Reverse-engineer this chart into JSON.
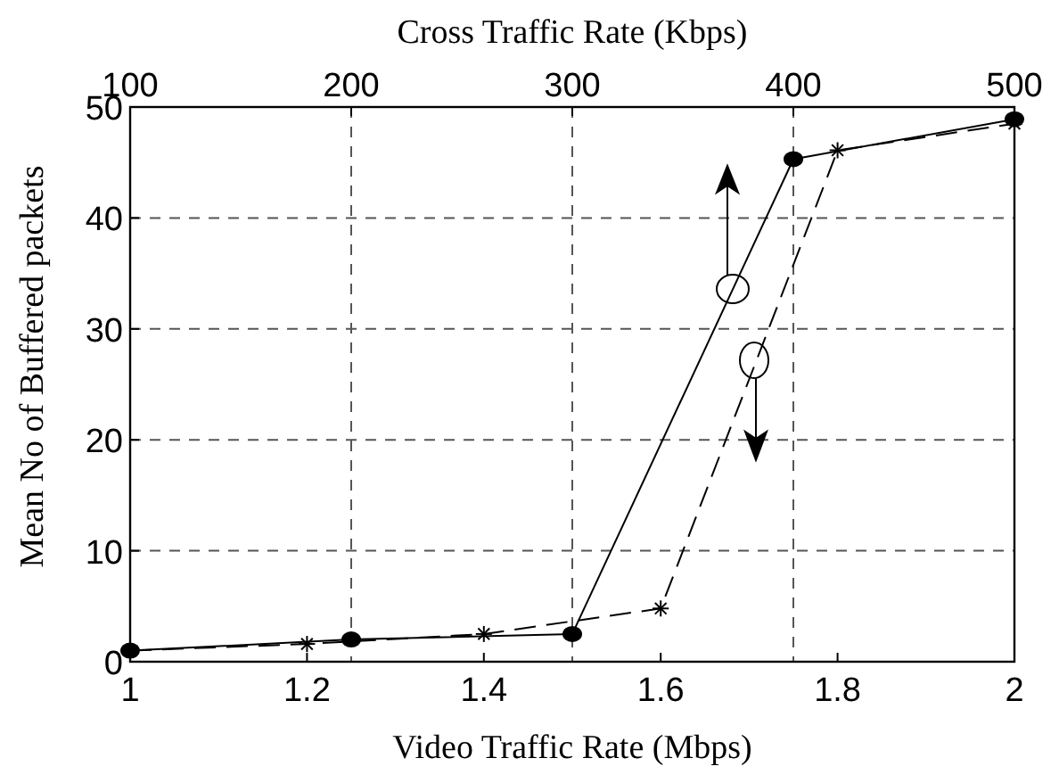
{
  "chart_data": {
    "type": "line",
    "xlabel": "Video Traffic Rate (Mbps)",
    "x2label": "Cross Traffic Rate (Kbps)",
    "ylabel": "Mean No of Buffered packets",
    "xlim": [
      1,
      2
    ],
    "xticks": [
      1,
      1.2,
      1.4,
      1.6,
      1.8,
      2
    ],
    "x2lim": [
      100,
      500
    ],
    "x2ticks": [
      100,
      200,
      300,
      400,
      500
    ],
    "ylim": [
      0,
      50
    ],
    "yticks": [
      0,
      10,
      20,
      30,
      40,
      50
    ],
    "grid": true,
    "series": [
      {
        "axis": "x2",
        "x": [
          100,
          200,
          300,
          400,
          500
        ],
        "values": [
          1,
          2,
          2.5,
          45.3,
          48.9
        ],
        "color": "#000000",
        "marker": "circle",
        "line_style": "solid"
      },
      {
        "x": [
          1,
          1.2,
          1.4,
          1.6,
          1.8,
          2
        ],
        "values": [
          1,
          1.6,
          2.5,
          4.8,
          46.1,
          48.5
        ],
        "color": "#000000",
        "marker": "cross",
        "line_style": "dashed"
      }
    ]
  }
}
